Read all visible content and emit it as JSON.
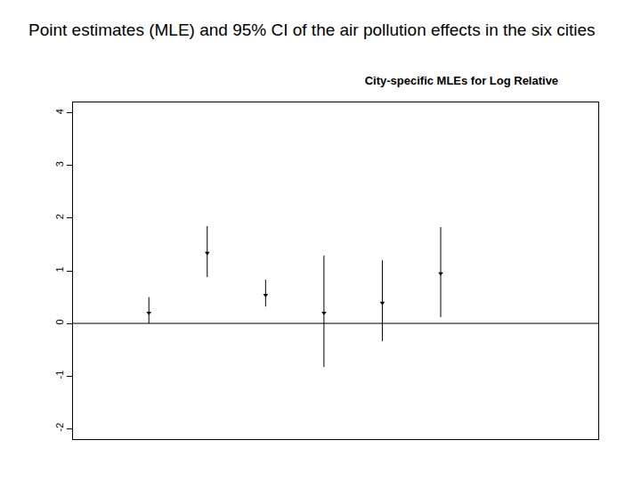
{
  "heading": "Point estimates (MLE) and 95% CI of the air pollution effects in the six cities",
  "chart_data": {
    "type": "scatter",
    "title": "City-specific MLEs for Log Relative",
    "x": [
      1,
      2,
      3,
      4,
      5,
      6
    ],
    "values": [
      0.2,
      1.34,
      0.54,
      0.2,
      0.39,
      0.95
    ],
    "ci_lower": [
      0.0,
      0.88,
      0.32,
      -0.83,
      -0.34,
      0.12
    ],
    "ci_upper": [
      0.5,
      1.85,
      0.83,
      1.29,
      1.2,
      1.83
    ],
    "xlim": [
      -0.3,
      8.7
    ],
    "ylim": [
      -2.2,
      4.2
    ],
    "yticks": [
      -2,
      -1,
      0,
      1,
      2,
      3,
      4
    ],
    "reference_line": 0,
    "tick_labels": "y",
    "grid": false,
    "color": "#000000",
    "marker": "triangle-down",
    "line_style": "solid"
  }
}
